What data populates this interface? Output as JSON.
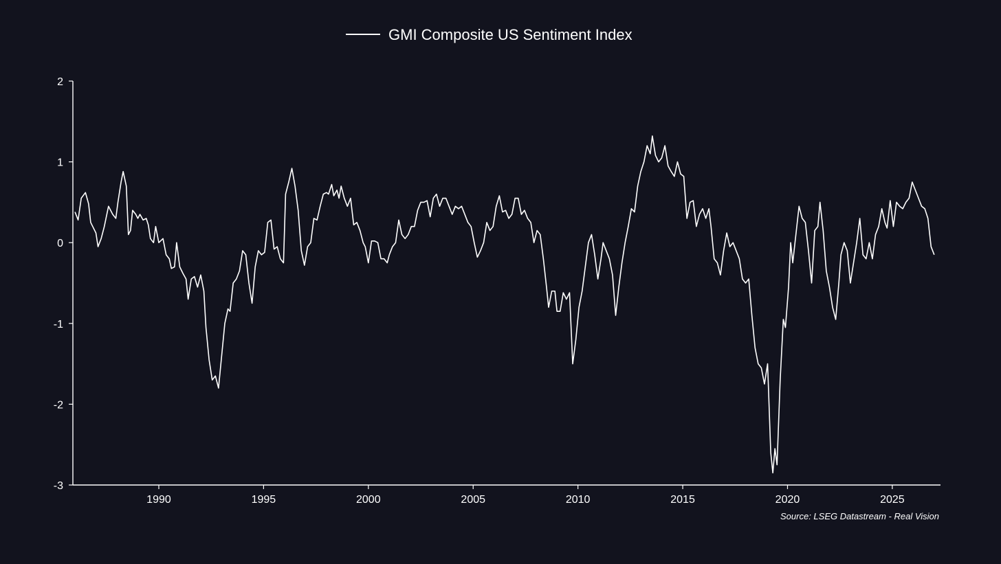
{
  "colors": {
    "background": "#12131e",
    "line": "#ffffff",
    "axis": "#ffffff",
    "text": "#ffffff"
  },
  "legend": {
    "label": "GMI Composite US Sentiment Index"
  },
  "source": "Source: LSEG Datastream - Real Vision",
  "chart_data": {
    "type": "line",
    "title": "",
    "xlabel": "",
    "ylabel": "",
    "legend_position": "top-center",
    "grid": false,
    "xlim": [
      1985.9,
      2027.3
    ],
    "ylim": [
      -3,
      2
    ],
    "x_ticks": [
      1990,
      1995,
      2000,
      2005,
      2010,
      2015,
      2020,
      2025
    ],
    "y_ticks": [
      2,
      1,
      0,
      -1,
      -2,
      -3
    ],
    "series": [
      {
        "name": "GMI Composite US Sentiment Index",
        "points": [
          [
            1986.0,
            0.38
          ],
          [
            1986.15,
            0.28
          ],
          [
            1986.3,
            0.55
          ],
          [
            1986.5,
            0.62
          ],
          [
            1986.65,
            0.48
          ],
          [
            1986.75,
            0.25
          ],
          [
            1987.0,
            0.12
          ],
          [
            1987.1,
            -0.05
          ],
          [
            1987.25,
            0.05
          ],
          [
            1987.4,
            0.2
          ],
          [
            1987.6,
            0.45
          ],
          [
            1987.8,
            0.35
          ],
          [
            1987.95,
            0.3
          ],
          [
            1988.05,
            0.5
          ],
          [
            1988.2,
            0.75
          ],
          [
            1988.3,
            0.88
          ],
          [
            1988.45,
            0.7
          ],
          [
            1988.55,
            0.1
          ],
          [
            1988.65,
            0.15
          ],
          [
            1988.75,
            0.4
          ],
          [
            1988.9,
            0.35
          ],
          [
            1989.0,
            0.3
          ],
          [
            1989.1,
            0.35
          ],
          [
            1989.25,
            0.28
          ],
          [
            1989.4,
            0.3
          ],
          [
            1989.5,
            0.22
          ],
          [
            1989.6,
            0.05
          ],
          [
            1989.75,
            0.0
          ],
          [
            1989.85,
            0.2
          ],
          [
            1990.0,
            0.0
          ],
          [
            1990.2,
            0.05
          ],
          [
            1990.35,
            -0.15
          ],
          [
            1990.5,
            -0.2
          ],
          [
            1990.6,
            -0.32
          ],
          [
            1990.75,
            -0.3
          ],
          [
            1990.85,
            0.0
          ],
          [
            1991.0,
            -0.3
          ],
          [
            1991.15,
            -0.38
          ],
          [
            1991.3,
            -0.45
          ],
          [
            1991.4,
            -0.7
          ],
          [
            1991.55,
            -0.45
          ],
          [
            1991.7,
            -0.42
          ],
          [
            1991.85,
            -0.55
          ],
          [
            1992.0,
            -0.4
          ],
          [
            1992.15,
            -0.6
          ],
          [
            1992.25,
            -1.05
          ],
          [
            1992.4,
            -1.45
          ],
          [
            1992.55,
            -1.7
          ],
          [
            1992.7,
            -1.65
          ],
          [
            1992.85,
            -1.8
          ],
          [
            1993.0,
            -1.4
          ],
          [
            1993.15,
            -1.0
          ],
          [
            1993.3,
            -0.82
          ],
          [
            1993.4,
            -0.85
          ],
          [
            1993.55,
            -0.5
          ],
          [
            1993.7,
            -0.45
          ],
          [
            1993.85,
            -0.35
          ],
          [
            1994.0,
            -0.1
          ],
          [
            1994.15,
            -0.15
          ],
          [
            1994.3,
            -0.5
          ],
          [
            1994.45,
            -0.75
          ],
          [
            1994.6,
            -0.3
          ],
          [
            1994.75,
            -0.1
          ],
          [
            1994.9,
            -0.15
          ],
          [
            1995.05,
            -0.12
          ],
          [
            1995.2,
            0.25
          ],
          [
            1995.35,
            0.28
          ],
          [
            1995.5,
            -0.08
          ],
          [
            1995.65,
            -0.05
          ],
          [
            1995.8,
            -0.2
          ],
          [
            1995.95,
            -0.25
          ],
          [
            1996.05,
            0.6
          ],
          [
            1996.2,
            0.75
          ],
          [
            1996.35,
            0.92
          ],
          [
            1996.5,
            0.7
          ],
          [
            1996.65,
            0.4
          ],
          [
            1996.8,
            -0.1
          ],
          [
            1996.95,
            -0.28
          ],
          [
            1997.1,
            -0.05
          ],
          [
            1997.25,
            0.0
          ],
          [
            1997.4,
            0.3
          ],
          [
            1997.55,
            0.28
          ],
          [
            1997.7,
            0.45
          ],
          [
            1997.85,
            0.6
          ],
          [
            1998.0,
            0.62
          ],
          [
            1998.1,
            0.6
          ],
          [
            1998.25,
            0.72
          ],
          [
            1998.35,
            0.58
          ],
          [
            1998.5,
            0.65
          ],
          [
            1998.6,
            0.55
          ],
          [
            1998.7,
            0.7
          ],
          [
            1998.85,
            0.55
          ],
          [
            1999.0,
            0.45
          ],
          [
            1999.15,
            0.55
          ],
          [
            1999.3,
            0.22
          ],
          [
            1999.45,
            0.25
          ],
          [
            1999.6,
            0.15
          ],
          [
            1999.75,
            0.0
          ],
          [
            1999.85,
            -0.05
          ],
          [
            2000.0,
            -0.25
          ],
          [
            2000.15,
            0.02
          ],
          [
            2000.3,
            0.02
          ],
          [
            2000.45,
            0.0
          ],
          [
            2000.6,
            -0.2
          ],
          [
            2000.75,
            -0.2
          ],
          [
            2000.9,
            -0.25
          ],
          [
            2001.0,
            -0.15
          ],
          [
            2001.15,
            -0.05
          ],
          [
            2001.3,
            0.0
          ],
          [
            2001.45,
            0.28
          ],
          [
            2001.6,
            0.1
          ],
          [
            2001.75,
            0.05
          ],
          [
            2001.9,
            0.1
          ],
          [
            2002.05,
            0.2
          ],
          [
            2002.2,
            0.2
          ],
          [
            2002.35,
            0.4
          ],
          [
            2002.5,
            0.5
          ],
          [
            2002.65,
            0.5
          ],
          [
            2002.8,
            0.52
          ],
          [
            2002.95,
            0.32
          ],
          [
            2003.1,
            0.55
          ],
          [
            2003.25,
            0.6
          ],
          [
            2003.4,
            0.45
          ],
          [
            2003.55,
            0.55
          ],
          [
            2003.7,
            0.55
          ],
          [
            2003.85,
            0.45
          ],
          [
            2004.0,
            0.35
          ],
          [
            2004.15,
            0.45
          ],
          [
            2004.3,
            0.42
          ],
          [
            2004.45,
            0.45
          ],
          [
            2004.6,
            0.35
          ],
          [
            2004.75,
            0.25
          ],
          [
            2004.9,
            0.2
          ],
          [
            2005.05,
            0.0
          ],
          [
            2005.2,
            -0.18
          ],
          [
            2005.35,
            -0.1
          ],
          [
            2005.5,
            0.0
          ],
          [
            2005.65,
            0.25
          ],
          [
            2005.8,
            0.15
          ],
          [
            2005.95,
            0.2
          ],
          [
            2006.1,
            0.45
          ],
          [
            2006.25,
            0.58
          ],
          [
            2006.4,
            0.38
          ],
          [
            2006.55,
            0.4
          ],
          [
            2006.7,
            0.3
          ],
          [
            2006.85,
            0.35
          ],
          [
            2007.0,
            0.55
          ],
          [
            2007.15,
            0.55
          ],
          [
            2007.3,
            0.35
          ],
          [
            2007.45,
            0.4
          ],
          [
            2007.6,
            0.3
          ],
          [
            2007.75,
            0.25
          ],
          [
            2007.9,
            0.0
          ],
          [
            2008.05,
            0.15
          ],
          [
            2008.2,
            0.1
          ],
          [
            2008.35,
            -0.2
          ],
          [
            2008.5,
            -0.55
          ],
          [
            2008.6,
            -0.8
          ],
          [
            2008.75,
            -0.6
          ],
          [
            2008.9,
            -0.6
          ],
          [
            2009.0,
            -0.85
          ],
          [
            2009.15,
            -0.85
          ],
          [
            2009.3,
            -0.62
          ],
          [
            2009.45,
            -0.7
          ],
          [
            2009.6,
            -0.62
          ],
          [
            2009.75,
            -1.5
          ],
          [
            2009.9,
            -1.2
          ],
          [
            2010.05,
            -0.8
          ],
          [
            2010.2,
            -0.6
          ],
          [
            2010.35,
            -0.3
          ],
          [
            2010.5,
            0.0
          ],
          [
            2010.65,
            0.1
          ],
          [
            2010.8,
            -0.15
          ],
          [
            2010.95,
            -0.45
          ],
          [
            2011.1,
            -0.2
          ],
          [
            2011.2,
            0.0
          ],
          [
            2011.35,
            -0.1
          ],
          [
            2011.5,
            -0.2
          ],
          [
            2011.65,
            -0.4
          ],
          [
            2011.8,
            -0.9
          ],
          [
            2011.95,
            -0.55
          ],
          [
            2012.1,
            -0.25
          ],
          [
            2012.25,
            0.0
          ],
          [
            2012.4,
            0.2
          ],
          [
            2012.55,
            0.42
          ],
          [
            2012.7,
            0.38
          ],
          [
            2012.85,
            0.7
          ],
          [
            2013.0,
            0.88
          ],
          [
            2013.15,
            1.0
          ],
          [
            2013.3,
            1.2
          ],
          [
            2013.45,
            1.1
          ],
          [
            2013.55,
            1.32
          ],
          [
            2013.7,
            1.08
          ],
          [
            2013.85,
            1.0
          ],
          [
            2014.0,
            1.05
          ],
          [
            2014.15,
            1.2
          ],
          [
            2014.3,
            0.95
          ],
          [
            2014.45,
            0.88
          ],
          [
            2014.6,
            0.82
          ],
          [
            2014.75,
            1.0
          ],
          [
            2014.9,
            0.85
          ],
          [
            2015.05,
            0.82
          ],
          [
            2015.2,
            0.3
          ],
          [
            2015.35,
            0.5
          ],
          [
            2015.5,
            0.52
          ],
          [
            2015.65,
            0.2
          ],
          [
            2015.8,
            0.35
          ],
          [
            2015.95,
            0.42
          ],
          [
            2016.1,
            0.3
          ],
          [
            2016.25,
            0.42
          ],
          [
            2016.35,
            0.2
          ],
          [
            2016.5,
            -0.2
          ],
          [
            2016.65,
            -0.25
          ],
          [
            2016.8,
            -0.4
          ],
          [
            2016.95,
            -0.1
          ],
          [
            2017.1,
            0.12
          ],
          [
            2017.25,
            -0.05
          ],
          [
            2017.4,
            0.0
          ],
          [
            2017.55,
            -0.1
          ],
          [
            2017.7,
            -0.2
          ],
          [
            2017.85,
            -0.45
          ],
          [
            2018.0,
            -0.5
          ],
          [
            2018.15,
            -0.45
          ],
          [
            2018.3,
            -0.9
          ],
          [
            2018.45,
            -1.3
          ],
          [
            2018.6,
            -1.5
          ],
          [
            2018.75,
            -1.55
          ],
          [
            2018.9,
            -1.75
          ],
          [
            2019.05,
            -1.5
          ],
          [
            2019.2,
            -2.6
          ],
          [
            2019.3,
            -2.85
          ],
          [
            2019.4,
            -2.55
          ],
          [
            2019.5,
            -2.75
          ],
          [
            2019.65,
            -1.7
          ],
          [
            2019.8,
            -0.95
          ],
          [
            2019.9,
            -1.05
          ],
          [
            2020.05,
            -0.55
          ],
          [
            2020.15,
            0.0
          ],
          [
            2020.25,
            -0.25
          ],
          [
            2020.4,
            0.1
          ],
          [
            2020.55,
            0.45
          ],
          [
            2020.7,
            0.3
          ],
          [
            2020.85,
            0.25
          ],
          [
            2021.0,
            -0.1
          ],
          [
            2021.15,
            -0.5
          ],
          [
            2021.3,
            0.15
          ],
          [
            2021.45,
            0.2
          ],
          [
            2021.55,
            0.5
          ],
          [
            2021.7,
            0.15
          ],
          [
            2021.85,
            -0.35
          ],
          [
            2022.0,
            -0.55
          ],
          [
            2022.15,
            -0.8
          ],
          [
            2022.3,
            -0.95
          ],
          [
            2022.45,
            -0.5
          ],
          [
            2022.55,
            -0.15
          ],
          [
            2022.7,
            0.0
          ],
          [
            2022.85,
            -0.1
          ],
          [
            2023.0,
            -0.5
          ],
          [
            2023.15,
            -0.25
          ],
          [
            2023.3,
            0.0
          ],
          [
            2023.45,
            0.3
          ],
          [
            2023.6,
            -0.15
          ],
          [
            2023.75,
            -0.2
          ],
          [
            2023.9,
            0.0
          ],
          [
            2024.05,
            -0.2
          ],
          [
            2024.2,
            0.1
          ],
          [
            2024.35,
            0.2
          ],
          [
            2024.5,
            0.42
          ],
          [
            2024.65,
            0.25
          ],
          [
            2024.75,
            0.18
          ],
          [
            2024.9,
            0.52
          ],
          [
            2025.05,
            0.2
          ],
          [
            2025.2,
            0.5
          ],
          [
            2025.35,
            0.45
          ],
          [
            2025.5,
            0.42
          ],
          [
            2025.65,
            0.5
          ],
          [
            2025.8,
            0.55
          ],
          [
            2025.95,
            0.75
          ],
          [
            2026.1,
            0.65
          ],
          [
            2026.25,
            0.55
          ],
          [
            2026.4,
            0.45
          ],
          [
            2026.55,
            0.42
          ],
          [
            2026.7,
            0.3
          ],
          [
            2026.85,
            -0.05
          ],
          [
            2027.0,
            -0.15
          ]
        ]
      }
    ]
  }
}
